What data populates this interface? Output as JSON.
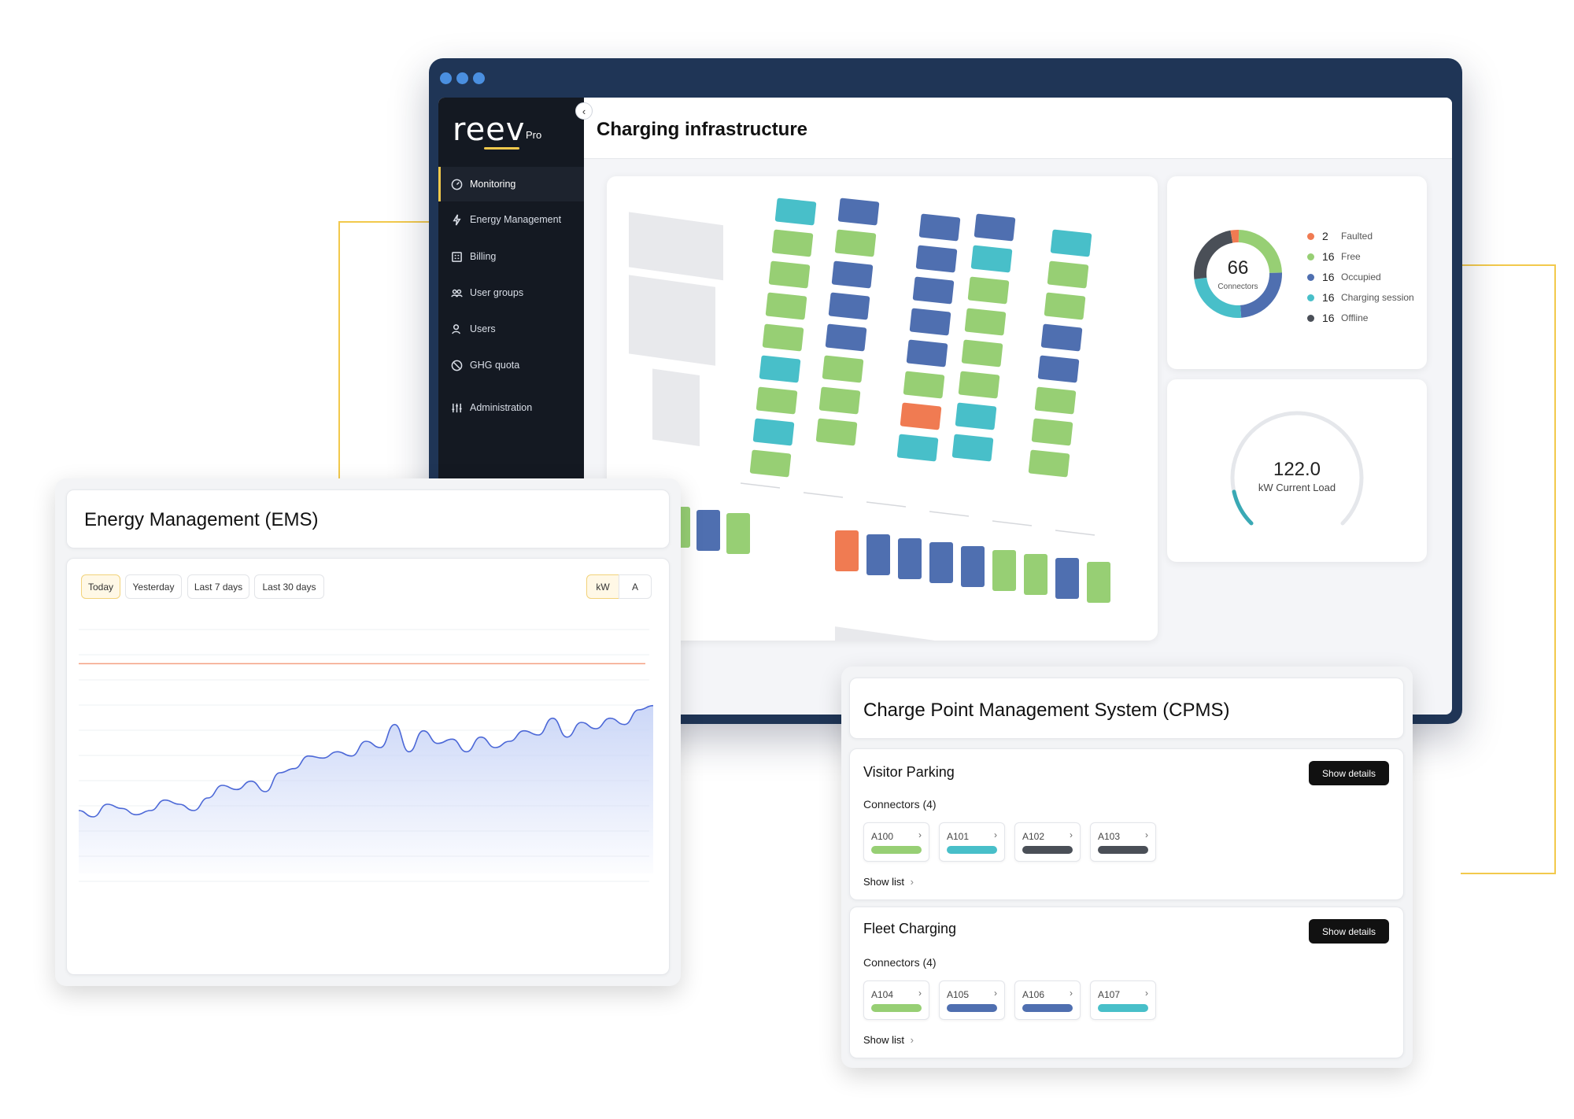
{
  "app": {
    "logo": "reev",
    "logo_suffix": "Pro",
    "page_title": "Charging infrastructure"
  },
  "sidebar": {
    "items": [
      {
        "label": "Monitoring",
        "icon": "gauge-icon",
        "active": true
      },
      {
        "label": "Energy Management",
        "icon": "bolt-icon",
        "active": false
      },
      {
        "label": "Billing",
        "icon": "calculator-icon",
        "active": false
      },
      {
        "label": "User groups",
        "icon": "users-group-icon",
        "active": false
      },
      {
        "label": "Users",
        "icon": "user-icon",
        "active": false
      },
      {
        "label": "GHG quota",
        "icon": "ghg-icon",
        "active": false
      },
      {
        "label": "Administration",
        "icon": "sliders-icon",
        "active": false
      }
    ]
  },
  "connectors_summary": {
    "total": "66",
    "total_label": "Connectors",
    "legend": [
      {
        "count": "2",
        "label": "Faulted",
        "color": "#f07b52"
      },
      {
        "count": "16",
        "label": "Free",
        "color": "#97cf74"
      },
      {
        "count": "16",
        "label": "Occupied",
        "color": "#4f6fb0"
      },
      {
        "count": "16",
        "label": "Charging session",
        "color": "#48bfc9"
      },
      {
        "count": "16",
        "label": "Offline",
        "color": "#4a4f57"
      }
    ]
  },
  "current_load": {
    "value": "122.0",
    "label": "kW Current Load",
    "fill_fraction": 0.12
  },
  "ems": {
    "title": "Energy Management (EMS)",
    "ranges": [
      "Today",
      "Yesterday",
      "Last 7 days",
      "Last 30 days"
    ],
    "selected_range": "Today",
    "units": [
      "kW",
      "A"
    ],
    "selected_unit": "kW"
  },
  "chart_data": {
    "type": "area",
    "title": "",
    "xlabel": "",
    "ylabel": "",
    "x": [
      0,
      1,
      2,
      3,
      4,
      5,
      6,
      7,
      8,
      9,
      10,
      11,
      12,
      13,
      14,
      15,
      16,
      17,
      18,
      19,
      20,
      21,
      22,
      23,
      24,
      25,
      26,
      27,
      28,
      29,
      30,
      31,
      32,
      33,
      34,
      35,
      36,
      37,
      38,
      39,
      40
    ],
    "series": [
      {
        "values": [
          30,
          27,
          33,
          31,
          28,
          30,
          35,
          33,
          30,
          36,
          42,
          40,
          44,
          39,
          48,
          50,
          56,
          55,
          58,
          56,
          63,
          60,
          71,
          58,
          68,
          62,
          64,
          58,
          65,
          60,
          63,
          68,
          66,
          74,
          65,
          72,
          69,
          74,
          71,
          78,
          80
        ]
      }
    ],
    "limit_line": 100,
    "ylim": [
      0,
      120
    ],
    "grid": true,
    "colors": {
      "line": "#4c68d7",
      "area": "#c9d5f7",
      "limit": "#f4a082"
    }
  },
  "cpms": {
    "title": "Charge Point Management System (CPMS)",
    "groups": [
      {
        "name": "Visitor Parking",
        "button": "Show details",
        "connectors_label": "Connectors (4)",
        "connectors": [
          {
            "id": "A100",
            "color": "#97cf74"
          },
          {
            "id": "A101",
            "color": "#48bfc9"
          },
          {
            "id": "A102",
            "color": "#4a4f57"
          },
          {
            "id": "A103",
            "color": "#4a4f57"
          }
        ],
        "show_list": "Show list"
      },
      {
        "name": "Fleet Charging",
        "button": "Show details",
        "connectors_label": "Connectors (4)",
        "connectors": [
          {
            "id": "A104",
            "color": "#97cf74"
          },
          {
            "id": "A105",
            "color": "#4f6fb0"
          },
          {
            "id": "A106",
            "color": "#4f6fb0"
          },
          {
            "id": "A107",
            "color": "#48bfc9"
          }
        ],
        "show_list": "Show list"
      }
    ]
  },
  "parking_map": {
    "colors": {
      "free": "#97cf74",
      "occupied": "#4f6fb0",
      "charging": "#48bfc9",
      "faulted": "#f07b52",
      "offline": "#4a4f57"
    }
  }
}
